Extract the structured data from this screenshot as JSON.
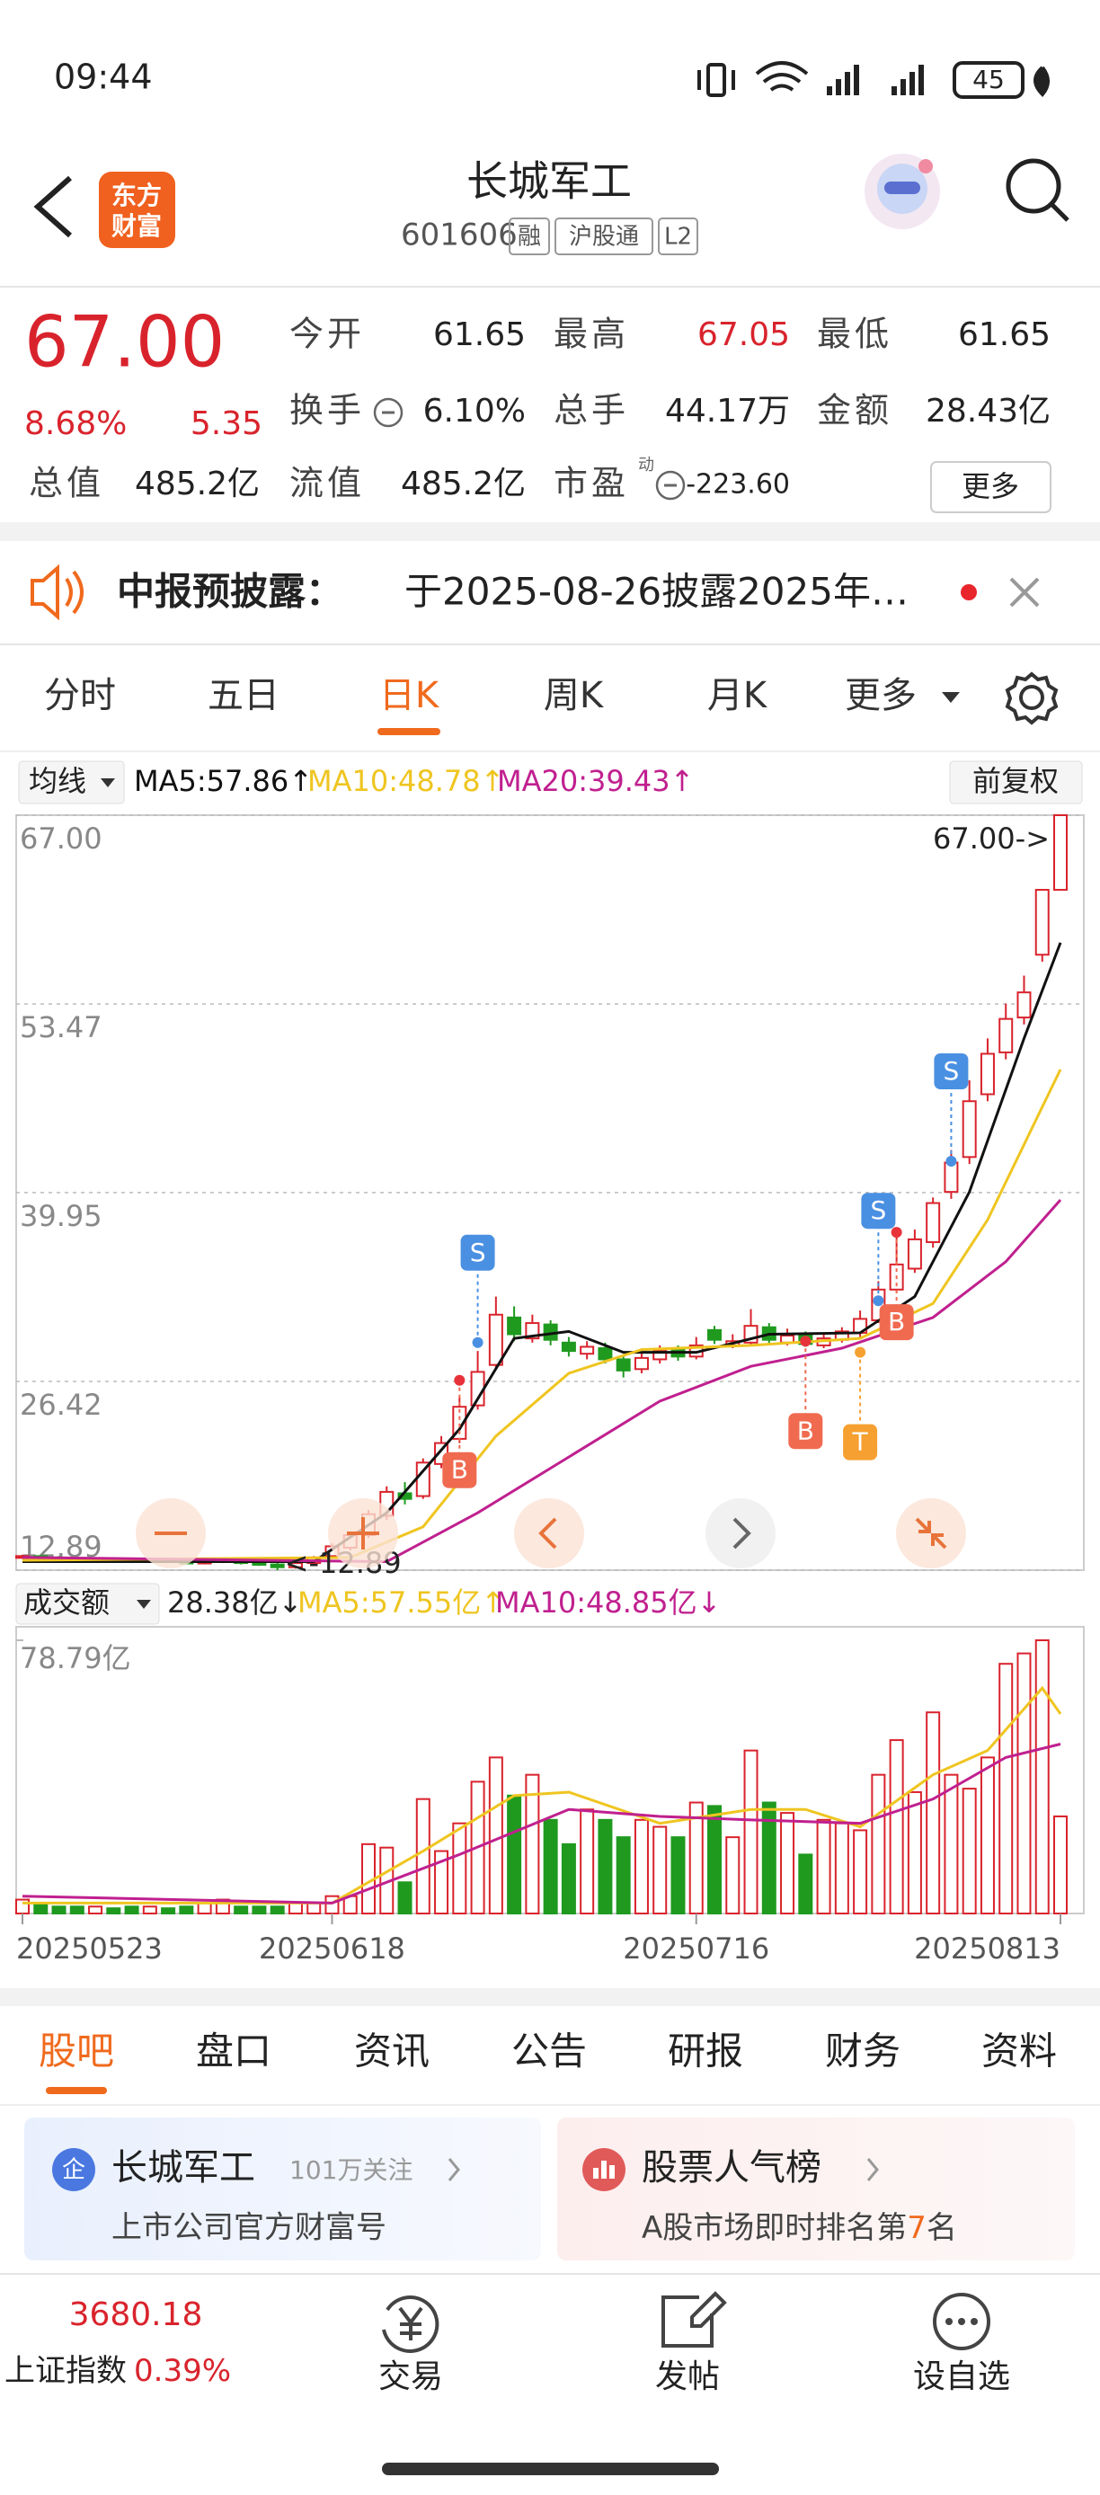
{
  "status_bar": {
    "time": "09:44",
    "battery": "45"
  },
  "header": {
    "logo": [
      "东方",
      "财富"
    ],
    "title": "长城军工",
    "code": "601606",
    "tags": [
      "融",
      "沪股通",
      "L2"
    ]
  },
  "quote": {
    "price": "67.00",
    "change_pct": "8.68%",
    "change": "5.35",
    "color": "#d9232c",
    "stats": [
      {
        "label": "今开",
        "value": "61.65"
      },
      {
        "label": "最高",
        "value": "67.05",
        "color": "#d9232c"
      },
      {
        "label": "最低",
        "value": "61.65"
      },
      {
        "label": "换手",
        "value": "6.10%"
      },
      {
        "label": "总手",
        "value": "44.17万"
      },
      {
        "label": "金额",
        "value": "28.43亿"
      },
      {
        "label": "总值",
        "value": "485.2亿"
      },
      {
        "label": "流值",
        "value": "485.2亿"
      },
      {
        "label": "市盈",
        "note": "动",
        "value": "-223.60"
      }
    ],
    "more": "更多"
  },
  "notice": {
    "title": "中报预披露：",
    "text": "于2025-08-26披露2025年…"
  },
  "tabs": {
    "items": [
      "分时",
      "五日",
      "日K",
      "周K",
      "月K",
      "更多"
    ],
    "active": 2
  },
  "chart_data": [
    {
      "type": "candlestick",
      "legend_button": "均线",
      "adjust_button": "前复权",
      "open": [
        13.8,
        13.9,
        13.8,
        13.7,
        13.6,
        13.7,
        13.6,
        13.5,
        13.6,
        13.5,
        13.4,
        13.5,
        13.6,
        13.4,
        13.3,
        13.1,
        13.4,
        13.9,
        14.5,
        15.4,
        16.8,
        18.4,
        18.2,
        20.5,
        22.3,
        24.7,
        27.6,
        31.0,
        29.5,
        30.5,
        29.2,
        28.4,
        28.8,
        28.0,
        27.3,
        28.0,
        28.7,
        28.2,
        30.1,
        29.0,
        29.2,
        30.3,
        29.2,
        29.8,
        29.0,
        29.4,
        29.9,
        30.8,
        33.0,
        34.5,
        36.4,
        40.0,
        42.5,
        47.0,
        50.0,
        52.5,
        57.0,
        61.65
      ],
      "high": [
        14.0,
        14.0,
        13.9,
        13.8,
        13.8,
        13.8,
        13.7,
        13.7,
        13.7,
        13.6,
        13.6,
        13.7,
        13.7,
        13.5,
        13.4,
        13.5,
        13.9,
        14.8,
        15.6,
        17.2,
        18.9,
        19.2,
        20.9,
        22.5,
        25.3,
        28.6,
        32.5,
        31.8,
        31.2,
        30.8,
        29.6,
        29.3,
        29.2,
        28.2,
        28.5,
        29.0,
        29.0,
        29.6,
        30.4,
        29.8,
        31.6,
        30.6,
        30.2,
        30.0,
        29.9,
        30.3,
        31.5,
        33.6,
        37.2,
        37.3,
        39.6,
        43.0,
        48.0,
        51.0,
        53.5,
        55.5,
        61.65,
        67.05
      ],
      "low": [
        13.7,
        13.7,
        13.6,
        13.5,
        13.5,
        13.5,
        13.4,
        13.4,
        13.4,
        13.3,
        13.3,
        13.4,
        13.3,
        13.2,
        12.89,
        13.0,
        13.3,
        13.8,
        14.3,
        15.2,
        16.5,
        17.6,
        18.0,
        20.2,
        22.0,
        24.4,
        27.3,
        29.3,
        29.2,
        29.0,
        28.2,
        28.0,
        27.7,
        26.7,
        27.0,
        27.7,
        27.9,
        28.0,
        29.1,
        28.8,
        29.0,
        29.1,
        29.0,
        28.9,
        28.8,
        29.2,
        29.6,
        30.6,
        32.8,
        34.2,
        36.0,
        39.5,
        42.0,
        46.5,
        49.5,
        52.0,
        56.5,
        61.65
      ],
      "close": [
        13.9,
        13.8,
        13.7,
        13.6,
        13.7,
        13.6,
        13.5,
        13.6,
        13.5,
        13.4,
        13.5,
        13.6,
        13.4,
        13.3,
        13.1,
        13.4,
        13.8,
        14.6,
        15.4,
        16.9,
        18.5,
        18.0,
        20.6,
        22.0,
        24.6,
        27.1,
        31.2,
        29.8,
        30.6,
        29.4,
        28.6,
        28.9,
        28.0,
        27.2,
        28.1,
        28.6,
        28.2,
        29.0,
        29.4,
        29.3,
        30.4,
        29.4,
        29.7,
        29.1,
        29.5,
        30.0,
        30.9,
        33.0,
        34.8,
        36.6,
        39.2,
        42.1,
        46.5,
        49.9,
        52.4,
        54.3,
        61.65,
        67.0
      ],
      "up_color": "#d9232c",
      "down_color": "#1f9a1f",
      "series": [
        {
          "name": "MA5:57.86↑",
          "color": "#111111",
          "x": [
            0,
            16,
            20,
            24,
            27,
            30,
            33,
            37,
            41,
            46,
            49,
            52,
            55,
            57
          ],
          "values": [
            13.5,
            13.5,
            17,
            23,
            29.5,
            30,
            28.5,
            28.5,
            29.8,
            29.9,
            32.5,
            40,
            51,
            57.86
          ]
        },
        {
          "name": "MA10:48.78↑",
          "color": "#efc520",
          "x": [
            0,
            18,
            22,
            26,
            30,
            34,
            40,
            46,
            50,
            53,
            57
          ],
          "values": [
            13.6,
            13.8,
            16,
            22.5,
            27,
            28.7,
            29,
            29.5,
            32,
            38,
            48.78
          ]
        },
        {
          "name": "MA20:39.43↑",
          "color": "#c0208f",
          "x": [
            0,
            20,
            25,
            30,
            35,
            40,
            45,
            50,
            54,
            57
          ],
          "values": [
            13.8,
            13.5,
            17,
            21,
            25,
            27.5,
            28.8,
            31,
            35,
            39.43
          ]
        }
      ],
      "signals": [
        {
          "index": 24,
          "label": "B",
          "price": 26.5
        },
        {
          "index": 25,
          "label": "S",
          "price": 29.2
        },
        {
          "index": 43,
          "label": "B",
          "price": 29.3
        },
        {
          "index": 46,
          "label": "T",
          "price": 28.5
        },
        {
          "index": 47,
          "label": "S",
          "price": 32.2
        },
        {
          "index": 48,
          "label": "B",
          "price": 37.1
        },
        {
          "index": 51,
          "label": "S",
          "price": 42.2
        }
      ],
      "annotations": [
        {
          "text": "67.00->",
          "index": 57,
          "value": 67.0
        },
        {
          "text": "<-12.89",
          "index": 14,
          "value": 12.89
        }
      ],
      "ylim": [
        12.89,
        67.0
      ],
      "yticks": [
        {
          "value": 67.0,
          "label": "67.00"
        },
        {
          "value": 53.47,
          "label": "53.47"
        },
        {
          "value": 39.95,
          "label": "39.95"
        },
        {
          "value": 26.42,
          "label": "26.42"
        },
        {
          "value": 12.89,
          "label": "12.89"
        }
      ],
      "grid": true
    },
    {
      "type": "bar",
      "legend_button": "成交额",
      "current_label": "28.38亿↓",
      "categories": [
        "20250523",
        null,
        null,
        null,
        null,
        null,
        null,
        null,
        null,
        null,
        null,
        null,
        null,
        null,
        null,
        null,
        null,
        "20250618",
        null,
        null,
        null,
        null,
        null,
        null,
        null,
        null,
        null,
        null,
        null,
        null,
        null,
        null,
        null,
        null,
        null,
        null,
        null,
        "20250716",
        null,
        null,
        null,
        null,
        null,
        null,
        null,
        null,
        null,
        null,
        null,
        null,
        null,
        null,
        null,
        null,
        null,
        null,
        null,
        "20250813"
      ],
      "values": [
        4,
        3,
        2,
        2,
        2,
        1.5,
        2,
        2,
        1.5,
        2,
        3,
        4,
        2,
        2,
        2,
        3,
        3,
        5,
        5,
        20,
        19,
        9,
        33,
        18,
        26,
        38,
        45,
        34,
        40,
        27,
        20,
        30,
        27,
        22,
        27,
        25,
        22,
        32,
        31,
        22,
        47,
        32,
        29,
        17,
        27,
        26,
        24,
        40,
        50,
        35,
        58,
        40,
        36,
        45,
        72,
        75,
        78.79,
        28
      ],
      "series": [
        {
          "name": "MA5:57.55亿↑",
          "color": "#efc520",
          "x": [
            0,
            17,
            22,
            27,
            30,
            35,
            40,
            43,
            46,
            50,
            53,
            56,
            57
          ],
          "values": [
            3,
            3,
            18,
            34,
            35,
            26,
            30,
            30,
            25,
            40,
            47,
            65,
            57.55
          ]
        },
        {
          "name": "MA10:48.85亿↓",
          "color": "#c0208f",
          "x": [
            0,
            17,
            24,
            30,
            35,
            40,
            46,
            50,
            54,
            57
          ],
          "values": [
            5,
            3,
            17,
            30,
            28,
            27,
            26,
            33,
            45,
            48.85
          ]
        }
      ],
      "ylim": [
        0,
        78.79
      ],
      "yticks": [
        {
          "value": 78.79,
          "label": "78.79亿"
        }
      ]
    }
  ],
  "bottom_tabs": {
    "items": [
      "股吧",
      "盘口",
      "资讯",
      "公告",
      "研报",
      "财务",
      "资料"
    ],
    "active": 0
  },
  "cards": [
    {
      "icon": "企",
      "title": "长城军工",
      "meta": "101万关注",
      "subtitle": "上市公司官方财富号"
    },
    {
      "title": "股票人气榜",
      "subtitle_pre": "A股市场即时排名第",
      "rank": "7",
      "subtitle_post": "名"
    }
  ],
  "index_quote": {
    "value": "3680.18",
    "name": "上证指数",
    "change": "0.39%"
  },
  "nav": [
    "交易",
    "发帖",
    "设自选"
  ]
}
